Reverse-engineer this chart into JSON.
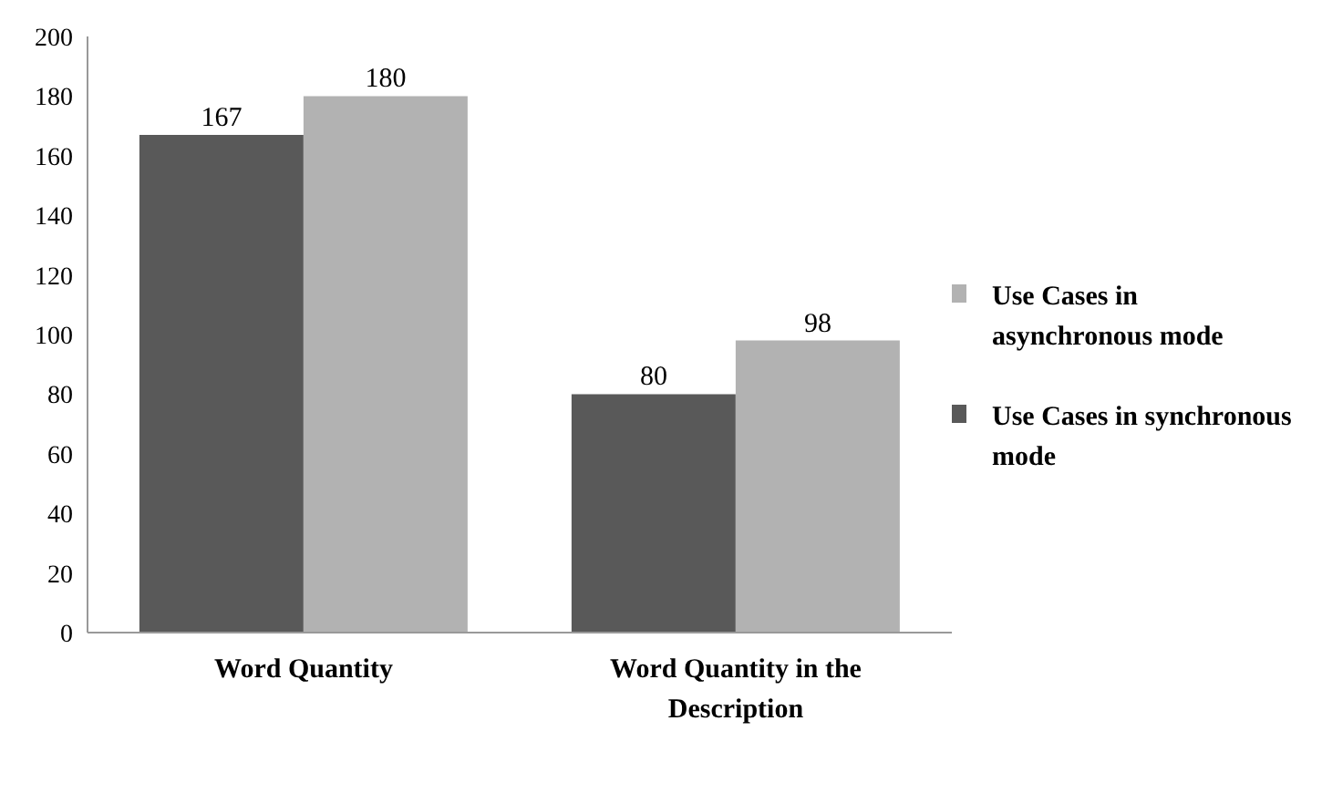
{
  "chart_data": {
    "type": "bar",
    "categories": [
      "Word Quantity",
      "Word Quantity in the Description"
    ],
    "series": [
      {
        "name": "Use Cases in synchronous mode",
        "color": "#595959",
        "values": [
          167,
          80
        ]
      },
      {
        "name": "Use Cases in asynchronous mode",
        "color": "#b2b2b2",
        "values": [
          180,
          98
        ]
      }
    ],
    "ylim": [
      0,
      200
    ],
    "yticks": [
      0,
      20,
      40,
      60,
      80,
      100,
      120,
      140,
      160,
      180,
      200
    ],
    "data_labels": true,
    "legend": "right",
    "grid": false
  }
}
